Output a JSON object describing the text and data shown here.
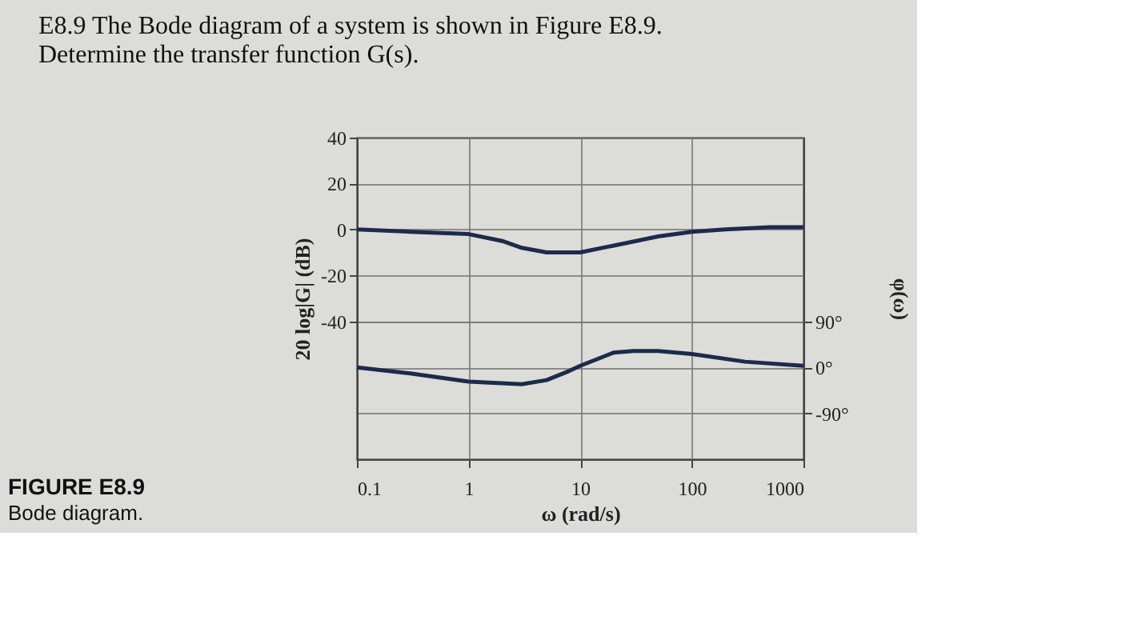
{
  "chart_data": {
    "type": "line",
    "title": "E8.9 The Bode diagram of a system is shown in Figure E8.9. Determine the transfer function G(s).",
    "annotations": [
      "FIGURE E8.9",
      "Bode diagram."
    ],
    "xlabel": "ω (rad/s)",
    "ylabel": "20 log|G| (dB)",
    "y2label": "φ(ω)",
    "log": "x",
    "xlim": [
      0.1,
      1000
    ],
    "xticks": [
      0.1,
      1,
      10,
      100,
      1000
    ],
    "ylim": [
      -100,
      40
    ],
    "yticks": [
      40,
      20,
      0,
      -20,
      -40
    ],
    "y2lim": [
      -180,
      450
    ],
    "y2ticks": [
      {
        "value": 90,
        "label": "90°"
      },
      {
        "value": 0,
        "label": "0°"
      },
      {
        "value": -90,
        "label": "-90°"
      }
    ],
    "grid": true,
    "line_style": "solid",
    "marker": "none",
    "series": [
      {
        "color": "#1c2b4a",
        "axis": "y",
        "x": [
          0.1,
          0.3,
          1,
          2,
          3,
          5,
          10,
          20,
          50,
          100,
          200,
          500,
          1000
        ],
        "values": [
          0,
          -1,
          -2,
          -5,
          -8,
          -10,
          -10,
          -7,
          -3,
          -1,
          0,
          1,
          1
        ]
      },
      {
        "color": "#1c2b4a",
        "axis": "y2",
        "x": [
          0.1,
          0.3,
          1,
          3,
          5,
          8,
          10,
          20,
          30,
          50,
          100,
          300,
          1000
        ],
        "values": [
          0,
          -12,
          -28,
          -33,
          -25,
          -7,
          3,
          29,
          32,
          32,
          26,
          11,
          3
        ]
      }
    ]
  }
}
